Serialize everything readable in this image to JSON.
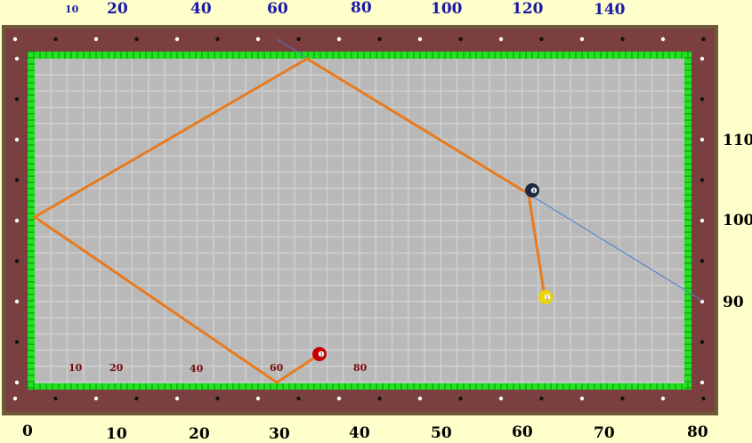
{
  "top_scale": [
    "10",
    "20",
    "40",
    "60",
    "80",
    "100",
    "120",
    "140"
  ],
  "bottom_scale": [
    "0",
    "10",
    "20",
    "30",
    "40",
    "50",
    "60",
    "70",
    "80"
  ],
  "right_scale": [
    "110",
    "100",
    "90"
  ],
  "inner_scale": [
    "10",
    "20",
    "40",
    "60",
    "80"
  ],
  "balls": [
    {
      "name": "ball-8",
      "number": "8",
      "color": "#1c2a44"
    },
    {
      "name": "ball-1",
      "number": "1",
      "color": "#e8d400"
    },
    {
      "name": "ball-3",
      "number": "3",
      "color": "#c40000"
    }
  ],
  "colors": {
    "background": "#ffffcc",
    "rail": "#7b3f3f",
    "cushion": "#22e322",
    "cloth": "#b9b9b9",
    "shot_path": "#e87b1e",
    "aim_line": "#4a7fd0",
    "top_scale_text": "#1a1aa6",
    "inner_scale_text": "#7a0a0a"
  }
}
